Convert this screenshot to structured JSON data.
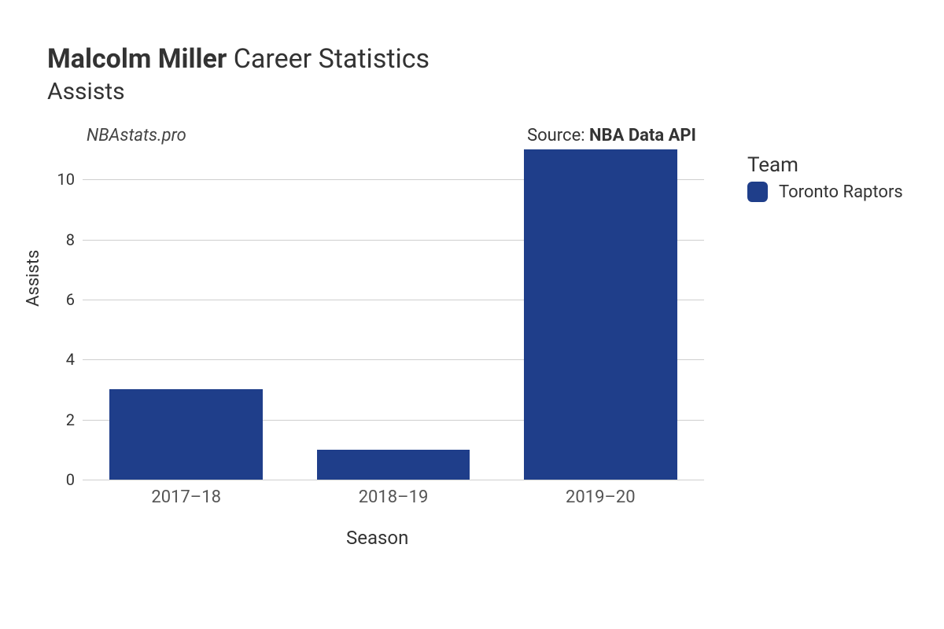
{
  "title": {
    "player": "Malcolm Miller",
    "suffix": "Career Statistics",
    "metric": "Assists"
  },
  "subheader": {
    "watermark": "NBAstats.pro",
    "source_prefix": "Source: ",
    "source_name": "NBA Data API"
  },
  "chart": {
    "type": "bar",
    "categories": [
      "2017–18",
      "2018–19",
      "2019–20"
    ],
    "values": [
      3,
      1,
      11
    ],
    "bar_color": "#1f3e8a",
    "background_color": "#ffffff",
    "grid_color": "#cfcfcf",
    "ylim": [
      0,
      11
    ],
    "y_ticks": [
      0,
      2,
      4,
      6,
      8,
      10
    ],
    "bar_width_ratio": 0.74,
    "xlabel": "Season",
    "ylabel": "Assists",
    "tick_fontsize": 20,
    "label_fontsize": 24
  },
  "legend": {
    "title": "Team",
    "items": [
      {
        "label": "Toronto Raptors",
        "color": "#1f3e8a"
      }
    ]
  }
}
